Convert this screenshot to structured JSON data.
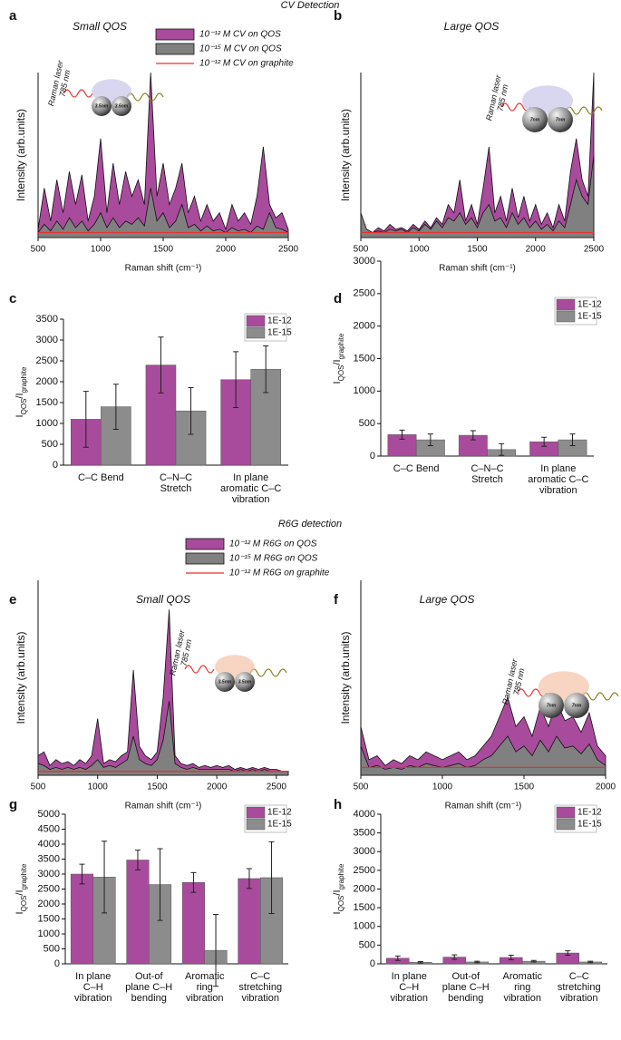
{
  "headings": [
    "CV Detection",
    "R6G detection"
  ],
  "chart_data": [
    {
      "type": "area",
      "panel": "a",
      "title": "Small QOS",
      "xlabel": "Raman shift (cm⁻¹)",
      "ylabel": "Intensity (arb.units)",
      "annotations": [
        "Raman laser",
        "785 nm",
        "3.5nm",
        "3.5nm"
      ],
      "x": [
        500,
        550,
        600,
        650,
        700,
        750,
        800,
        850,
        900,
        950,
        1000,
        1050,
        1100,
        1150,
        1200,
        1250,
        1300,
        1350,
        1400,
        1450,
        1500,
        1550,
        1600,
        1650,
        1700,
        1750,
        1800,
        1850,
        1900,
        1950,
        2000,
        2050,
        2100,
        2150,
        2200,
        2250,
        2300,
        2350,
        2400,
        2450,
        2500
      ],
      "xlim": [
        500,
        2500
      ],
      "ylim": [
        0,
        100
      ],
      "xticks": [
        500,
        1000,
        1500,
        2000,
        2500
      ],
      "series": [
        {
          "name": "10⁻¹² M CV on QOS",
          "color": "#a94b9c",
          "mark": "area",
          "values": [
            5,
            30,
            10,
            35,
            15,
            40,
            20,
            38,
            10,
            25,
            60,
            15,
            45,
            20,
            40,
            25,
            35,
            20,
            100,
            25,
            45,
            20,
            30,
            45,
            15,
            25,
            10,
            20,
            10,
            15,
            5,
            20,
            10,
            15,
            8,
            25,
            55,
            20,
            12,
            15,
            5
          ]
        },
        {
          "name": "10⁻¹⁵ M CV on QOS",
          "color": "#808080",
          "mark": "area",
          "values": [
            3,
            8,
            4,
            10,
            5,
            12,
            6,
            10,
            4,
            8,
            15,
            6,
            12,
            6,
            10,
            8,
            12,
            7,
            30,
            10,
            15,
            6,
            10,
            20,
            6,
            8,
            4,
            7,
            4,
            5,
            3,
            6,
            4,
            5,
            3,
            7,
            5,
            15,
            6,
            5,
            3
          ]
        },
        {
          "name": "10⁻¹² M CV on graphite",
          "color": "#e8312f",
          "mark": "line",
          "values": [
            3,
            3,
            3,
            3,
            3,
            3,
            3,
            3,
            3,
            3,
            3,
            3,
            3,
            3,
            3,
            3,
            3,
            3,
            3,
            3,
            3,
            3,
            3,
            3,
            3,
            3,
            3,
            3,
            3,
            3,
            3,
            3,
            3,
            3,
            3,
            3,
            3,
            3,
            3,
            3,
            3
          ]
        }
      ]
    },
    {
      "type": "area",
      "panel": "b",
      "title": "Large QOS",
      "xlabel": "Raman shift (cm⁻¹)",
      "ylabel": "Intensity (arb.units)",
      "annotations": [
        "Raman laser",
        "785 nm",
        "7nm",
        "7nm"
      ],
      "x": [
        500,
        550,
        600,
        650,
        700,
        750,
        800,
        850,
        900,
        950,
        1000,
        1050,
        1100,
        1150,
        1200,
        1250,
        1300,
        1350,
        1400,
        1450,
        1500,
        1550,
        1600,
        1650,
        1700,
        1750,
        1800,
        1850,
        1900,
        1950,
        2000,
        2050,
        2100,
        2150,
        2200,
        2250,
        2300,
        2350,
        2400,
        2450,
        2500
      ],
      "xlim": [
        500,
        2500
      ],
      "ylim": [
        0,
        100
      ],
      "xticks": [
        500,
        1000,
        1500,
        2000,
        2500
      ],
      "series": [
        {
          "color": "#a94b9c",
          "mark": "area",
          "values": [
            8,
            5,
            3,
            6,
            4,
            8,
            5,
            6,
            4,
            8,
            5,
            10,
            6,
            12,
            8,
            20,
            15,
            35,
            10,
            20,
            8,
            30,
            55,
            15,
            25,
            10,
            30,
            12,
            25,
            10,
            20,
            8,
            15,
            6,
            20,
            10,
            40,
            60,
            35,
            25,
            100
          ]
        },
        {
          "color": "#808080",
          "mark": "area",
          "values": [
            15,
            5,
            3,
            4,
            3,
            5,
            4,
            5,
            3,
            6,
            4,
            8,
            5,
            10,
            6,
            12,
            10,
            15,
            8,
            12,
            6,
            15,
            20,
            10,
            12,
            6,
            15,
            8,
            12,
            6,
            10,
            5,
            8,
            4,
            10,
            6,
            20,
            35,
            25,
            20,
            50
          ]
        },
        {
          "color": "#e8312f",
          "mark": "line",
          "values": [
            3,
            3,
            3,
            3,
            3,
            3,
            3,
            3,
            3,
            3,
            3,
            3,
            3,
            3,
            3,
            3,
            3,
            3,
            3,
            3,
            3,
            3,
            3,
            3,
            3,
            3,
            3,
            3,
            3,
            3,
            3,
            3,
            3,
            3,
            3,
            3,
            3,
            3,
            3,
            3,
            3
          ]
        }
      ]
    },
    {
      "type": "bar",
      "panel": "c",
      "ylabel": [
        "I",
        "QOS",
        "/I",
        "graphite"
      ],
      "categories": [
        [
          "C–C Bend"
        ],
        [
          "C–N–C",
          "Stretch"
        ],
        [
          "In plane",
          "aromatic C–C",
          "vibration"
        ]
      ],
      "ylim": [
        0,
        3500
      ],
      "yticks": [
        0,
        500,
        1000,
        1500,
        2000,
        2500,
        3000,
        3500
      ],
      "series": [
        {
          "name": "1E-12",
          "color": "#a94b9c",
          "values": [
            1100,
            2400,
            2050
          ],
          "errors": [
            670,
            670,
            670
          ]
        },
        {
          "name": "1E-15",
          "color": "#8c8c8c",
          "values": [
            1400,
            1300,
            2300
          ],
          "errors": [
            540,
            560,
            560
          ]
        }
      ]
    },
    {
      "type": "bar",
      "panel": "d",
      "ylabel": [
        "I",
        "QOS",
        "/I",
        "graphite"
      ],
      "categories": [
        [
          "C–C Bend"
        ],
        [
          "C–N–C",
          "Stretch"
        ],
        [
          "In plane",
          "aromatic C–C",
          "vibration"
        ]
      ],
      "ylim": [
        0,
        3000
      ],
      "yticks": [
        0,
        500,
        1000,
        1500,
        2000,
        2500,
        3000
      ],
      "series": [
        {
          "name": "1E-12",
          "color": "#a94b9c",
          "values": [
            330,
            320,
            220
          ],
          "errors": [
            70,
            70,
            70
          ]
        },
        {
          "name": "1E-15",
          "color": "#8c8c8c",
          "values": [
            250,
            100,
            250
          ],
          "errors": [
            90,
            90,
            90
          ]
        }
      ]
    },
    {
      "type": "area",
      "panel": "e",
      "title": "Small QOS",
      "xlabel": "Raman shift (cm⁻¹)",
      "ylabel": "Intensity (arb.units)",
      "annotations": [
        "Raman laser",
        "785 nm",
        "3.5nm",
        "3.5nm"
      ],
      "x": [
        500,
        550,
        600,
        650,
        700,
        750,
        800,
        850,
        900,
        950,
        1000,
        1050,
        1100,
        1150,
        1200,
        1250,
        1300,
        1350,
        1400,
        1450,
        1500,
        1550,
        1600,
        1650,
        1700,
        1750,
        1800,
        1850,
        1900,
        1950,
        2000,
        2050,
        2100,
        2150,
        2200,
        2250,
        2300,
        2350,
        2400,
        2450,
        2500,
        2550,
        2600
      ],
      "xlim": [
        500,
        2600
      ],
      "ylim": [
        0,
        100
      ],
      "xticks": [
        500,
        1000,
        1500,
        2000,
        2500
      ],
      "series": [
        {
          "name": "10⁻¹² M R6G on QOS",
          "color": "#a94b9c",
          "mark": "area",
          "values": [
            10,
            12,
            5,
            8,
            6,
            7,
            5,
            8,
            6,
            10,
            29,
            6,
            8,
            7,
            10,
            12,
            54,
            15,
            10,
            8,
            12,
            40,
            85,
            10,
            6,
            5,
            6,
            4,
            5,
            4,
            5,
            4,
            5,
            3,
            4,
            3,
            4,
            3,
            4,
            3,
            3,
            2,
            2
          ]
        },
        {
          "name": "10⁻¹⁵ M R6G on QOS",
          "color": "#808080",
          "mark": "area",
          "values": [
            6,
            5,
            3,
            4,
            3,
            4,
            3,
            4,
            3,
            5,
            8,
            4,
            5,
            4,
            6,
            8,
            20,
            8,
            6,
            5,
            8,
            18,
            38,
            6,
            4,
            3,
            4,
            3,
            3,
            3,
            3,
            3,
            3,
            2,
            3,
            2,
            3,
            2,
            3,
            2,
            2,
            2,
            2
          ]
        },
        {
          "name": "10⁻¹² M R6G on graphite",
          "color": "#e8312f",
          "mark": "line",
          "values": [
            2,
            2,
            2,
            2,
            2,
            2,
            2,
            2,
            2,
            2,
            2,
            2,
            2,
            2,
            2,
            2,
            2,
            2,
            2,
            2,
            2,
            2,
            2,
            2,
            2,
            2,
            2,
            2,
            2,
            2,
            2,
            2,
            2,
            2,
            2,
            2,
            2,
            2,
            2,
            2,
            2,
            2,
            2
          ]
        }
      ]
    },
    {
      "type": "area",
      "panel": "f",
      "title": "Large QOS",
      "xlabel": "Raman shift (cm⁻¹)",
      "ylabel": "Intensity (arb.units)",
      "annotations": [
        "Raman laser",
        "785 nm",
        "7nm",
        "7nm"
      ],
      "x": [
        500,
        550,
        600,
        650,
        700,
        750,
        800,
        850,
        900,
        950,
        1000,
        1050,
        1100,
        1150,
        1200,
        1250,
        1300,
        1350,
        1400,
        1450,
        1500,
        1550,
        1600,
        1650,
        1700,
        1750,
        1800,
        1850,
        1900,
        1950,
        2000
      ],
      "xlim": [
        500,
        2000
      ],
      "ylim": [
        0,
        100
      ],
      "xticks": [
        500,
        1000,
        1500,
        2000
      ],
      "series": [
        {
          "color": "#a94b9c",
          "mark": "area",
          "values": [
            25,
            8,
            10,
            5,
            8,
            6,
            10,
            8,
            12,
            10,
            8,
            10,
            12,
            8,
            10,
            15,
            20,
            30,
            40,
            25,
            30,
            20,
            35,
            25,
            38,
            28,
            30,
            22,
            32,
            15,
            10
          ]
        },
        {
          "color": "#808080",
          "mark": "area",
          "values": [
            15,
            4,
            5,
            3,
            4,
            3,
            5,
            4,
            6,
            5,
            4,
            5,
            6,
            4,
            5,
            8,
            10,
            15,
            20,
            12,
            15,
            10,
            18,
            12,
            20,
            14,
            15,
            11,
            16,
            8,
            5
          ]
        },
        {
          "color": "#e8312f",
          "mark": "line",
          "values": [
            4,
            4,
            4,
            4,
            4,
            4,
            4,
            4,
            4,
            4,
            4,
            4,
            4,
            4,
            4,
            4,
            4,
            4,
            4,
            4,
            4,
            4,
            4,
            4,
            4,
            4,
            4,
            4,
            4,
            4,
            4
          ]
        }
      ]
    },
    {
      "type": "bar",
      "panel": "g",
      "ylabel": [
        "I",
        "QOS",
        "/I",
        "graphite"
      ],
      "categories": [
        [
          "In plane",
          "C–H",
          "vibration"
        ],
        [
          "Out-of",
          "plane C–H",
          "bending"
        ],
        [
          "Aromatic",
          "ring",
          "vibration"
        ],
        [
          "C–C",
          "stretching",
          "vibration"
        ]
      ],
      "ylim": [
        0,
        5000
      ],
      "yticks": [
        0,
        500,
        1000,
        1500,
        2000,
        2500,
        3000,
        3500,
        4000,
        4500,
        5000
      ],
      "series": [
        {
          "name": "1E-12",
          "color": "#a94b9c",
          "values": [
            3000,
            3470,
            2720,
            2850
          ],
          "errors": [
            330,
            330,
            330,
            330
          ]
        },
        {
          "name": "1E-15",
          "color": "#8c8c8c",
          "values": [
            2900,
            2650,
            450,
            2880
          ],
          "errors": [
            1200,
            1200,
            1200,
            1200
          ]
        }
      ]
    },
    {
      "type": "bar",
      "panel": "h",
      "ylabel": [
        "I",
        "QOS",
        "/I",
        "graphite"
      ],
      "categories": [
        [
          "In plane",
          "C–H",
          "vibration"
        ],
        [
          "Out-of",
          "plane C–H",
          "bending"
        ],
        [
          "Aromatic",
          "ring",
          "vibration"
        ],
        [
          "C–C",
          "stretching",
          "vibration"
        ]
      ],
      "ylim": [
        0,
        4000
      ],
      "yticks": [
        0,
        500,
        1000,
        1500,
        2000,
        2500,
        3000,
        3500,
        4000
      ],
      "series": [
        {
          "name": "1E-12",
          "color": "#a94b9c",
          "values": [
            150,
            180,
            170,
            290
          ],
          "errors": [
            60,
            60,
            60,
            60
          ]
        },
        {
          "name": "1E-15",
          "color": "#8c8c8c",
          "values": [
            40,
            50,
            70,
            50
          ],
          "errors": [
            20,
            20,
            20,
            20
          ]
        }
      ]
    }
  ]
}
